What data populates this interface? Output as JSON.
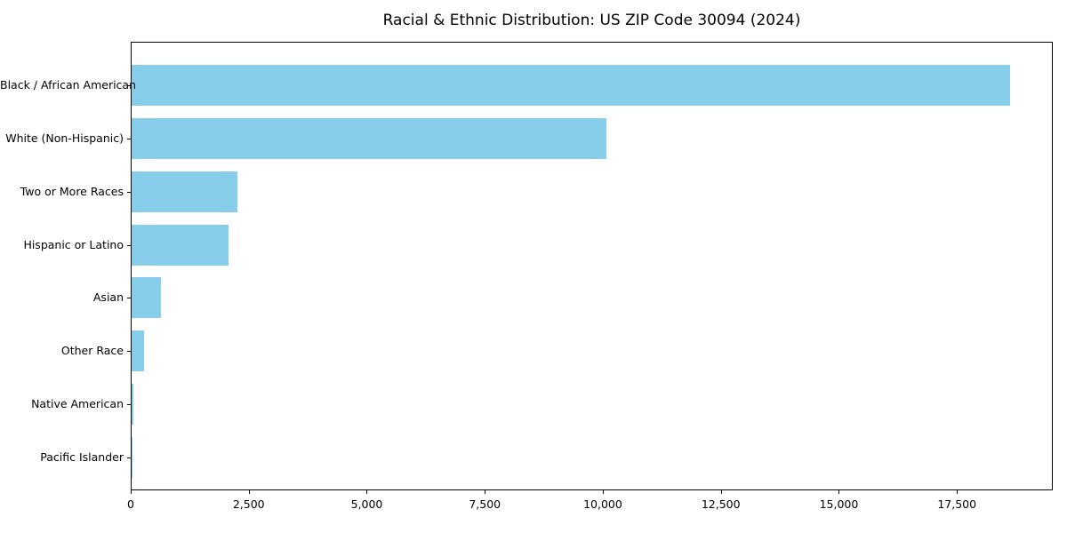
{
  "chart_data": {
    "type": "bar",
    "orientation": "horizontal",
    "title": "Racial & Ethnic Distribution: US ZIP Code 30094 (2024)",
    "categories": [
      "Black / African American",
      "White (Non-Hispanic)",
      "Two or More Races",
      "Hispanic or Latino",
      "Asian",
      "Other Race",
      "Native American",
      "Pacific Islander"
    ],
    "values": [
      18600,
      10050,
      2250,
      2060,
      620,
      260,
      30,
      10
    ],
    "xlabel": "",
    "ylabel": "",
    "x_ticks": [
      0,
      2500,
      5000,
      7500,
      10000,
      12500,
      15000,
      17500
    ],
    "x_tick_labels": [
      "0",
      "2,500",
      "5,000",
      "7,500",
      "10,000",
      "12,500",
      "15,000",
      "17,500"
    ],
    "xlim": [
      0,
      19530
    ],
    "bar_color": "#87CEEB",
    "grid": false,
    "legend": null
  }
}
